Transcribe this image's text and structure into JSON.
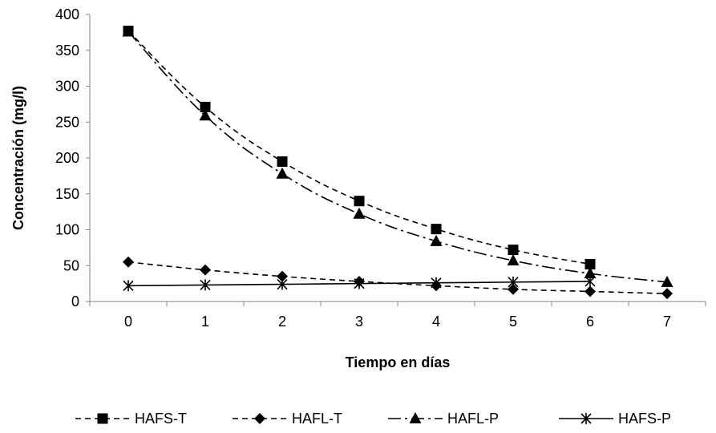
{
  "chart_data": {
    "type": "line",
    "title": "",
    "xlabel": "Tiempo en días",
    "ylabel": "Concentración (mg/l)",
    "x": [
      0,
      1,
      2,
      3,
      4,
      5,
      6,
      7
    ],
    "xlim": [
      -0.5,
      7.5
    ],
    "ylim": [
      0,
      400
    ],
    "y_ticks": [
      0,
      50,
      100,
      150,
      200,
      250,
      300,
      350,
      400
    ],
    "grid": false,
    "legend_position": "bottom",
    "series": [
      {
        "name": "HAFS-T",
        "marker": "square",
        "dash": "short-dash",
        "values": [
          377,
          271,
          195,
          140,
          101,
          72,
          52,
          null
        ]
      },
      {
        "name": "HAFL-T",
        "marker": "diamond",
        "dash": "short-dash",
        "values": [
          55,
          44,
          35,
          28,
          22,
          17,
          14,
          11
        ]
      },
      {
        "name": "HAFL-P",
        "marker": "triangle",
        "dash": "long-dash-dot",
        "values": [
          376,
          259,
          178,
          122,
          84,
          57,
          39,
          27
        ]
      },
      {
        "name": "HAFS-P",
        "marker": "star",
        "dash": "solid",
        "values": [
          22,
          23,
          24,
          25,
          26,
          27,
          28,
          null
        ]
      }
    ]
  }
}
